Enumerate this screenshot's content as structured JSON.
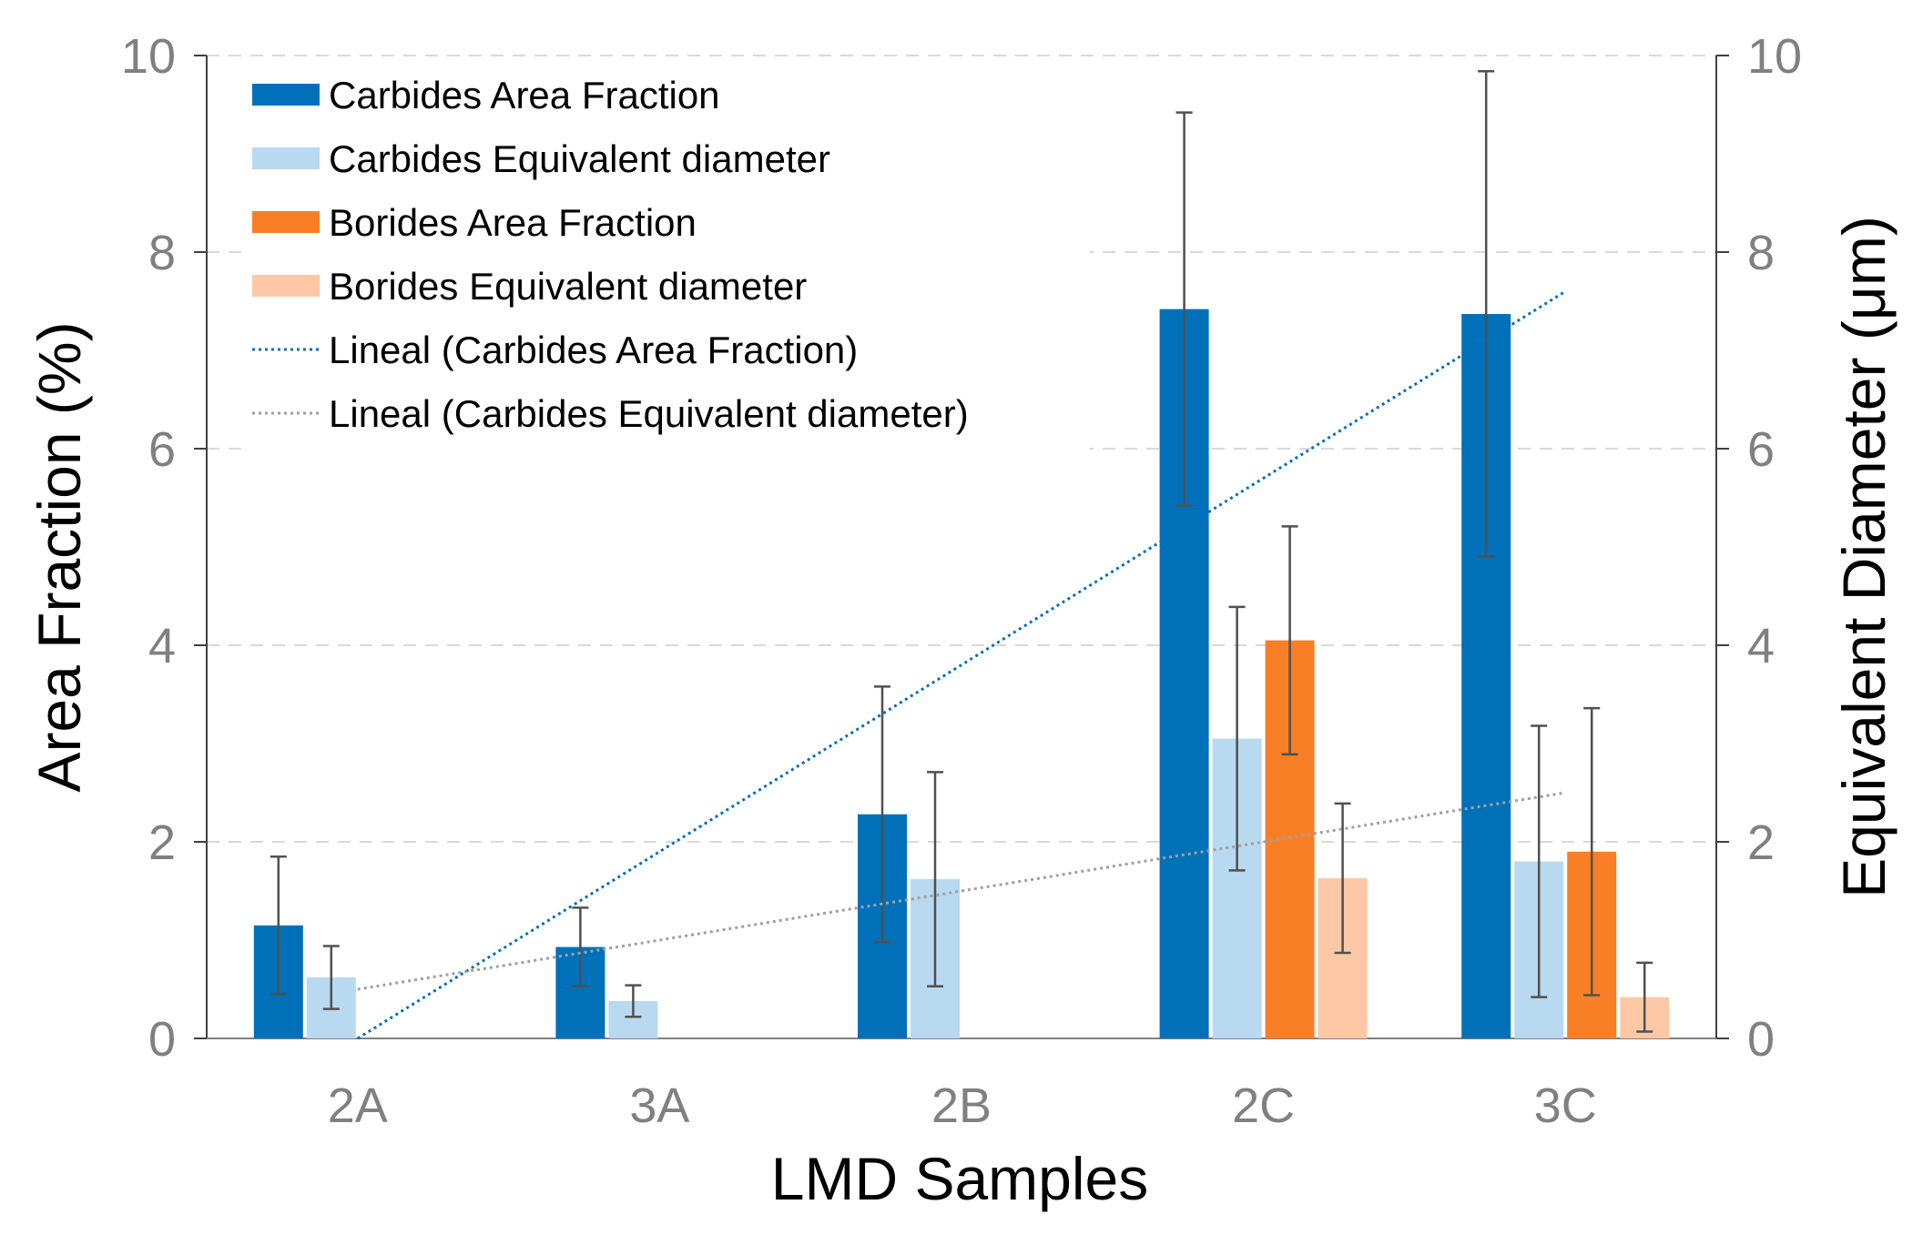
{
  "chart_data": {
    "type": "bar",
    "categories": [
      "2A",
      "3A",
      "2B",
      "2C",
      "3C"
    ],
    "xlabel": "LMD Samples",
    "ylabel": "Area Fraction (%)",
    "y2label": "Equivalent Diameter (μm)",
    "ylim": [
      0,
      10
    ],
    "y2lim": [
      0,
      10
    ],
    "yticks": [
      "0",
      "2",
      "4",
      "6",
      "8",
      "10"
    ],
    "y2ticks": [
      "0",
      "2",
      "4",
      "6",
      "8",
      "10"
    ],
    "grid": "horizontal dashed",
    "legend_position": "top-left",
    "series": [
      {
        "name": "Carbides Area Fraction",
        "color": "#0070b8",
        "axis": "left",
        "values": [
          1.15,
          0.93,
          2.28,
          7.42,
          7.37
        ],
        "errors": [
          0.7,
          0.4,
          1.3,
          2.0,
          2.47
        ]
      },
      {
        "name": "Carbides Equivalent diameter",
        "color": "#b8d9f0",
        "axis": "right",
        "values": [
          0.62,
          0.38,
          1.62,
          3.05,
          1.8
        ],
        "errors": [
          0.32,
          0.16,
          1.09,
          1.34,
          1.38
        ]
      },
      {
        "name": "Borides Area Fraction",
        "color": "#f97f27",
        "axis": "left",
        "values": [
          0,
          0,
          0,
          4.05,
          1.9
        ],
        "errors": [
          0,
          0,
          0,
          1.16,
          1.46
        ]
      },
      {
        "name": "Borides Equivalent diameter",
        "color": "#fec8a6",
        "axis": "right",
        "values": [
          0,
          0,
          0,
          1.63,
          0.42
        ],
        "errors": [
          0,
          0,
          0,
          0.76,
          0.35
        ]
      }
    ],
    "trendlines": [
      {
        "name": "Lineal (Carbides Area Fraction)",
        "color": "#0070b8",
        "style": "dotted",
        "start": {
          "category_index": 0,
          "value": 0
        },
        "end": {
          "category_index": 4,
          "value": 7.6
        }
      },
      {
        "name": "Lineal (Carbides Equivalent diameter)",
        "color": "#a0a0a0",
        "style": "dotted",
        "start": {
          "category_index": 0,
          "value": 0.5
        },
        "end": {
          "category_index": 4,
          "value": 2.5
        }
      }
    ]
  }
}
